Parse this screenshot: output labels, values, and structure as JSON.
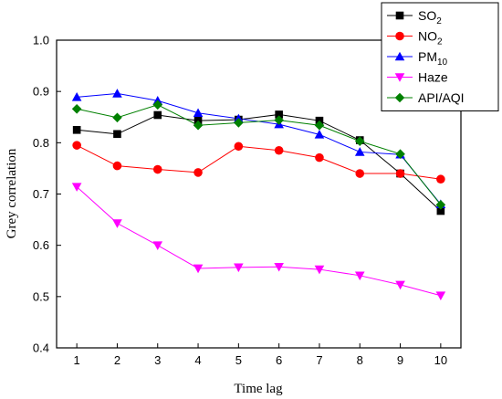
{
  "chart_data": {
    "type": "line",
    "xlabel": "Time lag",
    "ylabel": "Grey correlation",
    "x": [
      1,
      2,
      3,
      4,
      5,
      6,
      7,
      8,
      9,
      10
    ],
    "xlim": [
      0.5,
      10.5
    ],
    "ylim": [
      0.4,
      1.0
    ],
    "yticks": [
      "0.4",
      "0.5",
      "0.6",
      "0.7",
      "0.8",
      "0.9",
      "1.0"
    ],
    "grid": false,
    "legend_position": "top-right",
    "series": [
      {
        "name": "SO",
        "name_sub": "2",
        "color": "#000000",
        "marker": "square",
        "values": [
          0.825,
          0.817,
          0.854,
          0.843,
          0.845,
          0.855,
          0.843,
          0.805,
          0.74,
          0.667
        ]
      },
      {
        "name": "NO",
        "name_sub": "2",
        "color": "#ff0000",
        "marker": "circle",
        "values": [
          0.795,
          0.755,
          0.748,
          0.742,
          0.793,
          0.785,
          0.771,
          0.74,
          0.74,
          0.729
        ]
      },
      {
        "name": "PM",
        "name_sub": "10",
        "color": "#0000ff",
        "marker": "triangle-up",
        "values": [
          0.889,
          0.896,
          0.882,
          0.858,
          0.847,
          0.836,
          0.816,
          0.782,
          0.777,
          0.68
        ]
      },
      {
        "name": "Haze",
        "name_sub": "",
        "color": "#ff00ff",
        "marker": "triangle-down",
        "values": [
          0.714,
          0.643,
          0.6,
          0.555,
          0.557,
          0.558,
          0.553,
          0.541,
          0.523,
          0.502
        ]
      },
      {
        "name": "API/AQI",
        "name_sub": "",
        "color": "#008000",
        "marker": "diamond",
        "values": [
          0.866,
          0.849,
          0.874,
          0.834,
          0.839,
          0.844,
          0.834,
          0.803,
          0.778,
          0.679
        ]
      }
    ]
  }
}
